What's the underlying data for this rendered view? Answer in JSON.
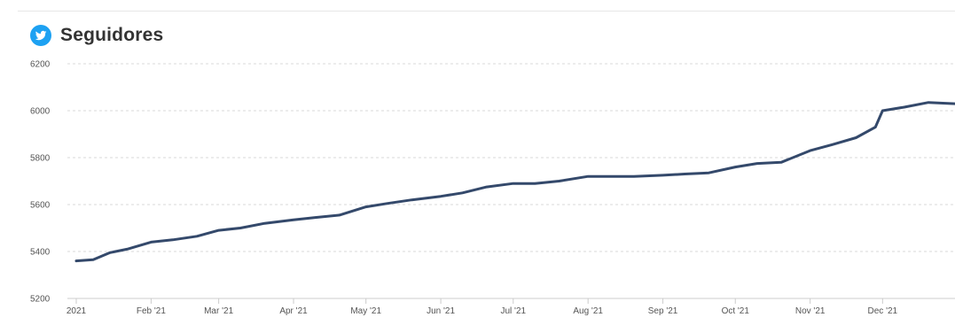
{
  "header": {
    "title": "Seguidores",
    "icon": "twitter-bird-icon",
    "icon_color": "#1DA1F2"
  },
  "chart_data": {
    "type": "line",
    "title": "Seguidores",
    "xlabel": "",
    "ylabel": "",
    "ylim": [
      5200,
      6200
    ],
    "yticks": [
      5200,
      5400,
      5600,
      5800,
      6000,
      6200
    ],
    "xlim": [
      "2021-01-01",
      "2021-12-31"
    ],
    "xticks": [
      {
        "label": "2021",
        "date": "2021-01-01"
      },
      {
        "label": "Feb '21",
        "date": "2021-02-01"
      },
      {
        "label": "Mar '21",
        "date": "2021-03-01"
      },
      {
        "label": "Apr '21",
        "date": "2021-04-01"
      },
      {
        "label": "May '21",
        "date": "2021-05-01"
      },
      {
        "label": "Jun '21",
        "date": "2021-06-01"
      },
      {
        "label": "Jul '21",
        "date": "2021-07-01"
      },
      {
        "label": "Aug '21",
        "date": "2021-08-01"
      },
      {
        "label": "Sep '21",
        "date": "2021-09-01"
      },
      {
        "label": "Oct '21",
        "date": "2021-10-01"
      },
      {
        "label": "Nov '21",
        "date": "2021-11-01"
      },
      {
        "label": "Dec '21",
        "date": "2021-12-01"
      }
    ],
    "grid": "horizontal-dashed",
    "line_color": "#34496B",
    "series": [
      {
        "x": [
          "2021-01-01",
          "2021-01-08",
          "2021-01-15",
          "2021-01-22",
          "2021-02-01",
          "2021-02-10",
          "2021-02-20",
          "2021-03-01",
          "2021-03-10",
          "2021-03-20",
          "2021-04-01",
          "2021-04-10",
          "2021-04-20",
          "2021-05-01",
          "2021-05-10",
          "2021-05-20",
          "2021-06-01",
          "2021-06-10",
          "2021-06-20",
          "2021-07-01",
          "2021-07-10",
          "2021-07-20",
          "2021-08-01",
          "2021-08-10",
          "2021-08-20",
          "2021-09-01",
          "2021-09-10",
          "2021-09-20",
          "2021-10-01",
          "2021-10-10",
          "2021-10-20",
          "2021-11-01",
          "2021-11-10",
          "2021-11-20",
          "2021-11-28",
          "2021-12-01",
          "2021-12-10",
          "2021-12-20",
          "2021-12-31"
        ],
        "values": [
          5360,
          5365,
          5395,
          5410,
          5440,
          5450,
          5465,
          5490,
          5500,
          5520,
          5535,
          5545,
          5555,
          5590,
          5605,
          5620,
          5635,
          5650,
          5675,
          5690,
          5690,
          5700,
          5720,
          5720,
          5720,
          5725,
          5730,
          5735,
          5760,
          5775,
          5780,
          5830,
          5855,
          5885,
          5930,
          6000,
          6015,
          6035,
          6030
        ]
      }
    ]
  }
}
